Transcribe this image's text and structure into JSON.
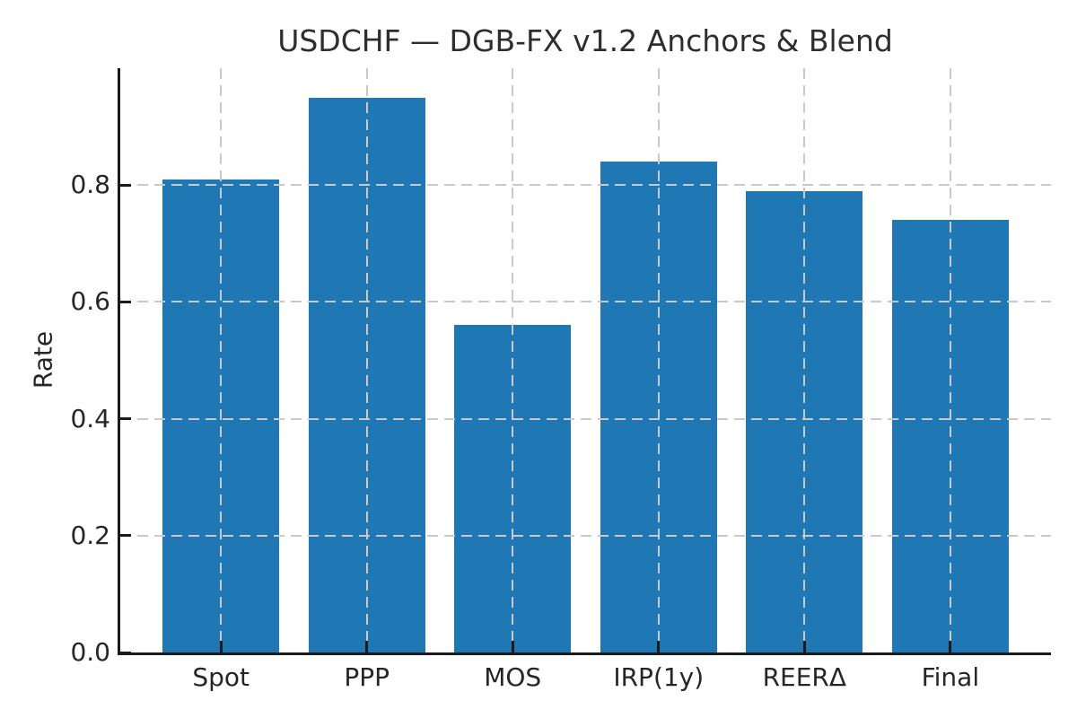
{
  "chart_data": {
    "type": "bar",
    "title": "USDCHF — DGB-FX v1.2 Anchors & Blend",
    "xlabel": "",
    "ylabel": "Rate",
    "categories": [
      "Spot",
      "PPP",
      "MOS",
      "IRP(1y)",
      "REERΔ",
      "Final"
    ],
    "values": [
      0.81,
      0.95,
      0.56,
      0.84,
      0.79,
      0.74
    ],
    "ylim": [
      0,
      1.0
    ],
    "yticks": [
      0.0,
      0.2,
      0.4,
      0.6,
      0.8
    ],
    "ytick_labels": [
      "0.0",
      "0.2",
      "0.4",
      "0.6",
      "0.8"
    ],
    "grid": {
      "show": true,
      "style": "dashed",
      "x": true,
      "y": true,
      "color": "#c9c9c9",
      "above_bars": true
    },
    "legend": "none",
    "colors": {
      "bar": "#1f77b4",
      "axis": "#1b1b1b",
      "text": "#262626",
      "title": "#2e2e2e",
      "background": "#ffffff"
    }
  }
}
